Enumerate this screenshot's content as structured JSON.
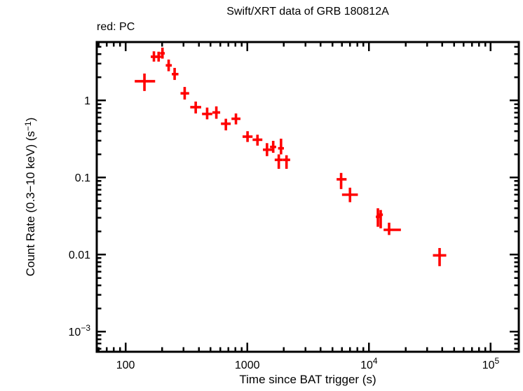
{
  "chart_data": {
    "type": "scatter",
    "subtype": "errorbar-log-log",
    "title": "Swift/XRT data of GRB 180812A",
    "annotation": "red: PC",
    "xlabel": "Time since BAT trigger (s)",
    "ylabel_parts": [
      "Count Rate (0.3−10 keV) (s",
      "−1",
      ")"
    ],
    "marker_color": "#ff0000",
    "axis_color": "#000000",
    "grid": false,
    "legend": "none",
    "xlim": [
      58,
      170000
    ],
    "ylim": [
      0.00055,
      5.74
    ],
    "xticks": [
      {
        "v": 100,
        "label": "100",
        "sup": ""
      },
      {
        "v": 1000,
        "label": "1000",
        "sup": ""
      },
      {
        "v": 10000,
        "label": "10",
        "sup": "4"
      },
      {
        "v": 100000,
        "label": "10",
        "sup": "5"
      }
    ],
    "yticks": [
      {
        "v": 1,
        "label": "1",
        "sup": ""
      },
      {
        "v": 0.1,
        "label": "0.1",
        "sup": ""
      },
      {
        "v": 0.01,
        "label": "0.01",
        "sup": ""
      },
      {
        "v": 0.001,
        "label": "10",
        "sup": "−3"
      }
    ],
    "points": [
      {
        "t": 143,
        "tlo": 119,
        "thi": 175,
        "r": 1.78,
        "rlo": 1.33,
        "rhi": 2.24
      },
      {
        "t": 171,
        "tlo": 161,
        "thi": 181,
        "r": 3.7,
        "rlo": 3.2,
        "rhi": 4.35
      },
      {
        "t": 187,
        "tlo": 178,
        "thi": 196,
        "r": 3.7,
        "rlo": 3.2,
        "rhi": 4.3
      },
      {
        "t": 201,
        "tlo": 192,
        "thi": 210,
        "r": 4.1,
        "rlo": 3.5,
        "rhi": 4.85
      },
      {
        "t": 226,
        "tlo": 214,
        "thi": 240,
        "r": 2.86,
        "rlo": 2.4,
        "rhi": 3.4
      },
      {
        "t": 253,
        "tlo": 240,
        "thi": 272,
        "r": 2.2,
        "rlo": 1.85,
        "rhi": 2.65
      },
      {
        "t": 306,
        "tlo": 283,
        "thi": 333,
        "r": 1.24,
        "rlo": 1.03,
        "rhi": 1.5
      },
      {
        "t": 377,
        "tlo": 340,
        "thi": 418,
        "r": 0.82,
        "rlo": 0.68,
        "rhi": 0.97
      },
      {
        "t": 468,
        "tlo": 425,
        "thi": 516,
        "r": 0.67,
        "rlo": 0.57,
        "rhi": 0.81
      },
      {
        "t": 557,
        "tlo": 517,
        "thi": 599,
        "r": 0.7,
        "rlo": 0.58,
        "rhi": 0.84
      },
      {
        "t": 667,
        "tlo": 608,
        "thi": 731,
        "r": 0.5,
        "rlo": 0.41,
        "rhi": 0.58
      },
      {
        "t": 807,
        "tlo": 742,
        "thi": 879,
        "r": 0.58,
        "rlo": 0.49,
        "rhi": 0.68
      },
      {
        "t": 1005,
        "tlo": 915,
        "thi": 1105,
        "r": 0.34,
        "rlo": 0.29,
        "rhi": 0.4
      },
      {
        "t": 1213,
        "tlo": 1106,
        "thi": 1330,
        "r": 0.31,
        "rlo": 0.26,
        "rhi": 0.36
      },
      {
        "t": 1452,
        "tlo": 1345,
        "thi": 1597,
        "r": 0.23,
        "rlo": 0.19,
        "rhi": 0.28
      },
      {
        "t": 1633,
        "tlo": 1538,
        "thi": 1727,
        "r": 0.25,
        "rlo": 0.21,
        "rhi": 0.3
      },
      {
        "t": 1815,
        "tlo": 1680,
        "thi": 1955,
        "r": 0.17,
        "rlo": 0.13,
        "rhi": 0.2
      },
      {
        "t": 1893,
        "tlo": 1790,
        "thi": 2000,
        "r": 0.24,
        "rlo": 0.2,
        "rhi": 0.32
      },
      {
        "t": 2100,
        "tlo": 1960,
        "thi": 2250,
        "r": 0.17,
        "rlo": 0.13,
        "rhi": 0.195
      },
      {
        "t": 5900,
        "tlo": 5420,
        "thi": 6540,
        "r": 0.095,
        "rlo": 0.071,
        "rhi": 0.115
      },
      {
        "t": 6980,
        "tlo": 6000,
        "thi": 8100,
        "r": 0.06,
        "rlo": 0.048,
        "rhi": 0.074
      },
      {
        "t": 11830,
        "tlo": 11380,
        "thi": 12270,
        "r": 0.031,
        "rlo": 0.023,
        "rhi": 0.04
      },
      {
        "t": 12470,
        "tlo": 11990,
        "thi": 13000,
        "r": 0.033,
        "rlo": 0.022,
        "rhi": 0.038
      },
      {
        "t": 14620,
        "tlo": 13180,
        "thi": 18280,
        "r": 0.021,
        "rlo": 0.018,
        "rhi": 0.026
      },
      {
        "t": 38000,
        "tlo": 33500,
        "thi": 43100,
        "r": 0.0098,
        "rlo": 0.0071,
        "rhi": 0.0122
      }
    ]
  }
}
